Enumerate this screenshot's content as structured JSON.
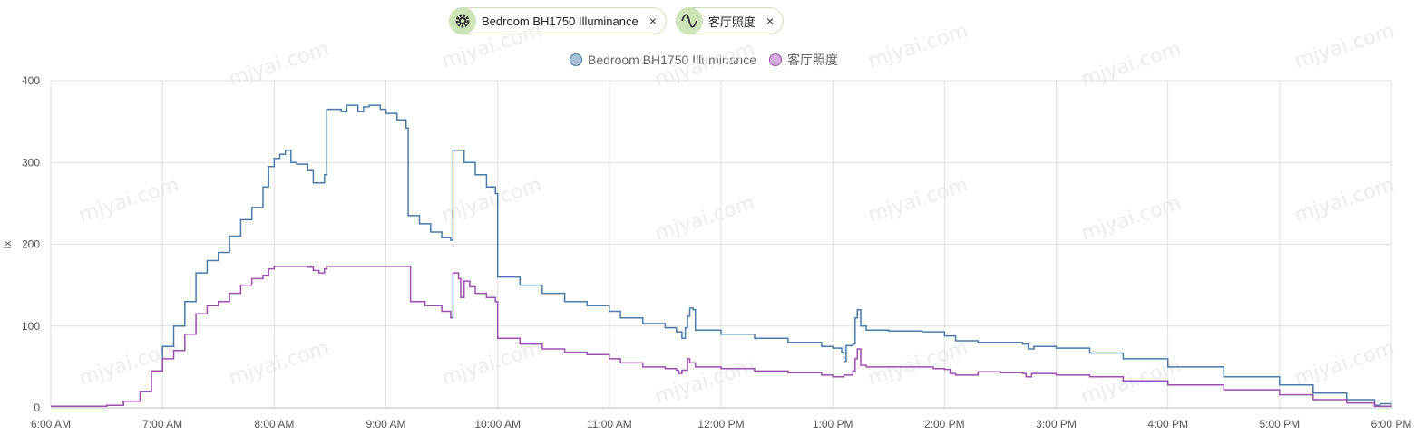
{
  "filters": [
    {
      "label": "Bedroom BH1750 Illuminance",
      "icon": "gear-icon",
      "close": "×"
    },
    {
      "label": "客厅照度",
      "icon": "sine-wave-icon",
      "close": "×"
    }
  ],
  "watermark": "mjyai.com",
  "colors": {
    "bedroom": "#4a7ba6",
    "living": "#9b4fae",
    "chip": "#cfe3b8"
  },
  "chart_data": {
    "type": "line",
    "title": "",
    "xlabel": "",
    "ylabel": "lx",
    "ylim": [
      0,
      400
    ],
    "yticks": [
      0,
      100,
      200,
      300,
      400
    ],
    "xticks": [
      "6:00 AM",
      "7:00 AM",
      "8:00 AM",
      "9:00 AM",
      "10:00 AM",
      "11:00 AM",
      "12:00 PM",
      "1:00 PM",
      "2:00 PM",
      "3:00 PM",
      "4:00 PM",
      "5:00 PM",
      "6:00 PM"
    ],
    "legend_position": "top-center",
    "grid": true,
    "series": [
      {
        "name": "Bedroom BH1750 Illuminance",
        "color": "#4a7ba6",
        "points": [
          [
            6.0,
            2
          ],
          [
            6.5,
            3
          ],
          [
            6.65,
            8
          ],
          [
            6.8,
            20
          ],
          [
            6.9,
            45
          ],
          [
            7.0,
            75
          ],
          [
            7.1,
            100
          ],
          [
            7.2,
            130
          ],
          [
            7.3,
            165
          ],
          [
            7.4,
            180
          ],
          [
            7.5,
            190
          ],
          [
            7.6,
            210
          ],
          [
            7.7,
            230
          ],
          [
            7.8,
            245
          ],
          [
            7.9,
            270
          ],
          [
            7.95,
            295
          ],
          [
            8.0,
            305
          ],
          [
            8.05,
            310
          ],
          [
            8.1,
            315
          ],
          [
            8.15,
            300
          ],
          [
            8.2,
            298
          ],
          [
            8.3,
            290
          ],
          [
            8.35,
            275
          ],
          [
            8.45,
            285
          ],
          [
            8.47,
            365
          ],
          [
            8.6,
            362
          ],
          [
            8.65,
            370
          ],
          [
            8.75,
            362
          ],
          [
            8.8,
            368
          ],
          [
            8.85,
            370
          ],
          [
            8.95,
            365
          ],
          [
            9.0,
            360
          ],
          [
            9.1,
            352
          ],
          [
            9.18,
            342
          ],
          [
            9.2,
            235
          ],
          [
            9.3,
            225
          ],
          [
            9.4,
            215
          ],
          [
            9.5,
            208
          ],
          [
            9.58,
            205
          ],
          [
            9.6,
            315
          ],
          [
            9.7,
            300
          ],
          [
            9.8,
            285
          ],
          [
            9.9,
            270
          ],
          [
            9.98,
            262
          ],
          [
            10.0,
            160
          ],
          [
            10.2,
            150
          ],
          [
            10.4,
            140
          ],
          [
            10.6,
            130
          ],
          [
            10.8,
            125
          ],
          [
            11.0,
            118
          ],
          [
            11.1,
            110
          ],
          [
            11.3,
            103
          ],
          [
            11.5,
            98
          ],
          [
            11.6,
            93
          ],
          [
            11.65,
            85
          ],
          [
            11.68,
            98
          ],
          [
            11.7,
            112
          ],
          [
            11.72,
            122
          ],
          [
            11.75,
            120
          ],
          [
            11.77,
            95
          ],
          [
            12.0,
            90
          ],
          [
            12.3,
            85
          ],
          [
            12.6,
            80
          ],
          [
            12.9,
            75
          ],
          [
            13.0,
            73
          ],
          [
            13.08,
            68
          ],
          [
            13.1,
            57
          ],
          [
            13.12,
            76
          ],
          [
            13.18,
            78
          ],
          [
            13.2,
            110
          ],
          [
            13.22,
            120
          ],
          [
            13.25,
            100
          ],
          [
            13.3,
            95
          ],
          [
            13.5,
            94
          ],
          [
            13.8,
            93
          ],
          [
            14.0,
            88
          ],
          [
            14.1,
            82
          ],
          [
            14.3,
            80
          ],
          [
            14.5,
            80
          ],
          [
            14.7,
            78
          ],
          [
            14.75,
            72
          ],
          [
            14.8,
            75
          ],
          [
            15.0,
            73
          ],
          [
            15.3,
            67
          ],
          [
            15.6,
            60
          ],
          [
            16.0,
            50
          ],
          [
            16.5,
            38
          ],
          [
            17.0,
            28
          ],
          [
            17.3,
            18
          ],
          [
            17.6,
            10
          ],
          [
            17.85,
            3
          ],
          [
            17.9,
            5
          ],
          [
            18.0,
            4
          ]
        ]
      },
      {
        "name": "客厅照度",
        "color": "#9b4fae",
        "points": [
          [
            6.0,
            2
          ],
          [
            6.5,
            3
          ],
          [
            6.65,
            8
          ],
          [
            6.8,
            20
          ],
          [
            6.9,
            45
          ],
          [
            7.0,
            60
          ],
          [
            7.1,
            70
          ],
          [
            7.2,
            90
          ],
          [
            7.3,
            115
          ],
          [
            7.4,
            125
          ],
          [
            7.5,
            130
          ],
          [
            7.6,
            140
          ],
          [
            7.7,
            150
          ],
          [
            7.8,
            158
          ],
          [
            7.9,
            162
          ],
          [
            7.95,
            170
          ],
          [
            8.0,
            173
          ],
          [
            8.2,
            173
          ],
          [
            8.3,
            172
          ],
          [
            8.35,
            168
          ],
          [
            8.4,
            165
          ],
          [
            8.45,
            170
          ],
          [
            8.47,
            173
          ],
          [
            8.6,
            173
          ],
          [
            9.0,
            173
          ],
          [
            9.2,
            173
          ],
          [
            9.22,
            130
          ],
          [
            9.35,
            125
          ],
          [
            9.5,
            118
          ],
          [
            9.58,
            110
          ],
          [
            9.6,
            165
          ],
          [
            9.65,
            158
          ],
          [
            9.67,
            135
          ],
          [
            9.7,
            155
          ],
          [
            9.75,
            148
          ],
          [
            9.8,
            140
          ],
          [
            9.9,
            135
          ],
          [
            9.98,
            130
          ],
          [
            10.0,
            85
          ],
          [
            10.2,
            78
          ],
          [
            10.4,
            72
          ],
          [
            10.6,
            68
          ],
          [
            10.8,
            65
          ],
          [
            11.0,
            60
          ],
          [
            11.1,
            55
          ],
          [
            11.3,
            50
          ],
          [
            11.5,
            48
          ],
          [
            11.6,
            46
          ],
          [
            11.62,
            42
          ],
          [
            11.65,
            46
          ],
          [
            11.7,
            60
          ],
          [
            11.72,
            55
          ],
          [
            11.77,
            50
          ],
          [
            12.0,
            48
          ],
          [
            12.3,
            45
          ],
          [
            12.6,
            43
          ],
          [
            12.9,
            40
          ],
          [
            13.0,
            38
          ],
          [
            13.1,
            40
          ],
          [
            13.18,
            45
          ],
          [
            13.2,
            60
          ],
          [
            13.22,
            72
          ],
          [
            13.25,
            52
          ],
          [
            13.3,
            50
          ],
          [
            13.6,
            50
          ],
          [
            13.9,
            48
          ],
          [
            14.0,
            47
          ],
          [
            14.05,
            42
          ],
          [
            14.1,
            40
          ],
          [
            14.3,
            44
          ],
          [
            14.5,
            43
          ],
          [
            14.7,
            42
          ],
          [
            14.73,
            38
          ],
          [
            14.78,
            42
          ],
          [
            15.0,
            40
          ],
          [
            15.3,
            38
          ],
          [
            15.6,
            33
          ],
          [
            16.0,
            28
          ],
          [
            16.5,
            22
          ],
          [
            17.0,
            16
          ],
          [
            17.3,
            10
          ],
          [
            17.6,
            6
          ],
          [
            17.85,
            2
          ],
          [
            18.0,
            3
          ]
        ]
      }
    ]
  }
}
